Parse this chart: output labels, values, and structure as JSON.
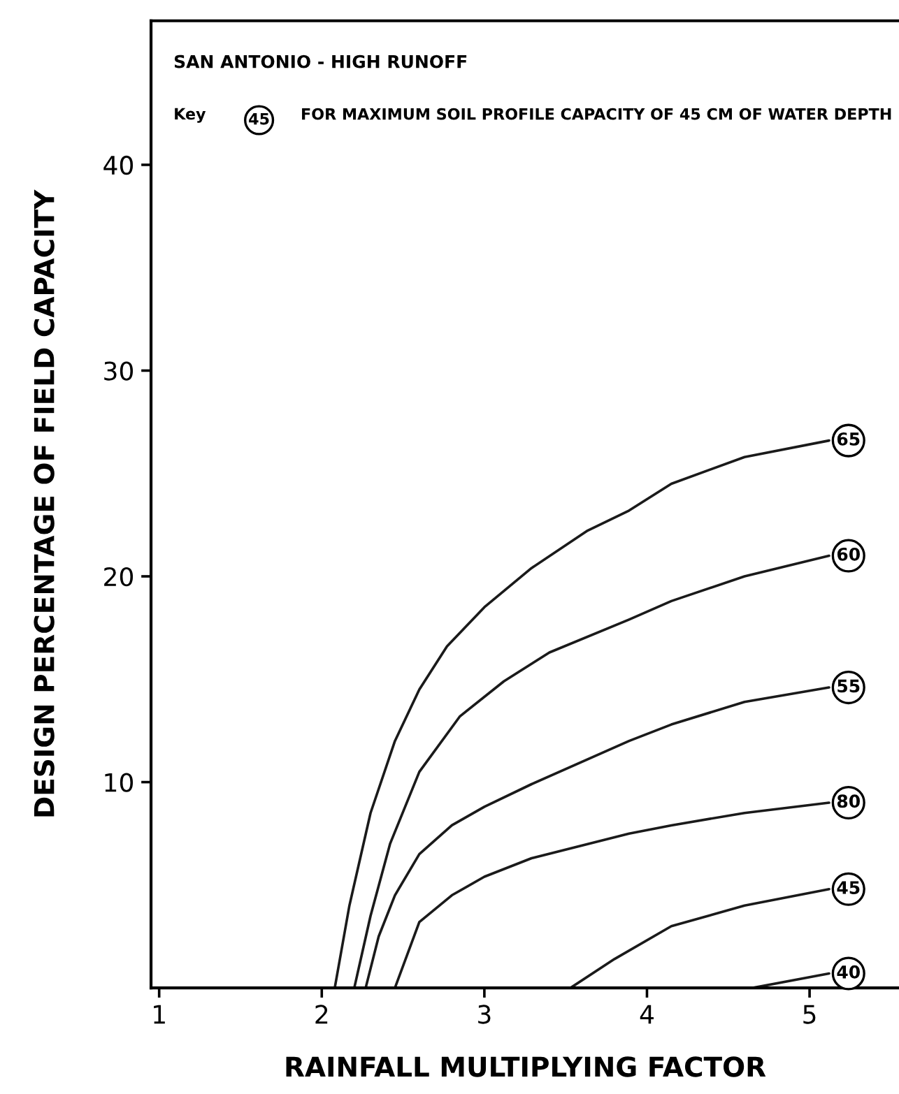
{
  "chart_data": {
    "type": "line",
    "title": "SAN ANTONIO - HIGH RUNOFF",
    "xlabel": "RAINFALL MULTIPLYING FACTOR",
    "ylabel": "DESIGN PERCENTAGE OF FIELD CAPACITY",
    "annotations": [
      "Key",
      "45",
      "FOR MAXIMUM SOIL PROFILE CAPACITY OF 45 CM OF WATER DEPTH"
    ],
    "xlim": [
      0.95,
      5.55
    ],
    "ylim": [
      0,
      47
    ],
    "xticks": [
      1,
      2,
      3,
      4,
      5
    ],
    "yticks": [
      10,
      20,
      30,
      40
    ],
    "grid": false,
    "legend": false,
    "series": [
      {
        "name": "65",
        "color": "#1a1a1a",
        "x": [
          2.08,
          2.17,
          2.3,
          2.45,
          2.6,
          2.77,
          3.0,
          3.29,
          3.63,
          3.89,
          4.15,
          4.6,
          5.12
        ],
        "values": [
          0,
          4,
          8.5,
          12.0,
          14.5,
          16.6,
          18.5,
          20.4,
          22.2,
          23.2,
          24.5,
          25.8,
          26.6
        ]
      },
      {
        "name": "60",
        "color": "#1a1a1a",
        "x": [
          2.2,
          2.3,
          2.42,
          2.6,
          2.85,
          3.12,
          3.4,
          3.89,
          4.15,
          4.6,
          5.12
        ],
        "values": [
          0,
          3.5,
          7,
          10.5,
          13.2,
          14.9,
          16.3,
          17.9,
          18.8,
          20.0,
          21.0
        ]
      },
      {
        "name": "55",
        "color": "#1a1a1a",
        "x": [
          2.27,
          2.35,
          2.45,
          2.6,
          2.8,
          3.0,
          3.29,
          3.89,
          4.15,
          4.6,
          5.12
        ],
        "values": [
          0,
          2.5,
          4.5,
          6.5,
          7.9,
          8.8,
          9.9,
          12.0,
          12.8,
          13.9,
          14.6
        ]
      },
      {
        "name": "80",
        "color": "#1a1a1a",
        "x": [
          2.45,
          2.6,
          2.8,
          3.0,
          3.29,
          3.89,
          4.15,
          4.6,
          5.12
        ],
        "values": [
          0,
          3.2,
          4.5,
          5.4,
          6.3,
          7.5,
          7.9,
          8.5,
          9.0
        ]
      },
      {
        "name": "45",
        "color": "#1a1a1a",
        "x": [
          3.53,
          3.8,
          4.15,
          4.6,
          5.12
        ],
        "values": [
          0,
          1.4,
          3.0,
          4.0,
          4.8
        ]
      },
      {
        "name": "40",
        "color": "#1a1a1a",
        "x": [
          4.65,
          5.12
        ],
        "values": [
          0,
          0.7
        ]
      }
    ]
  }
}
